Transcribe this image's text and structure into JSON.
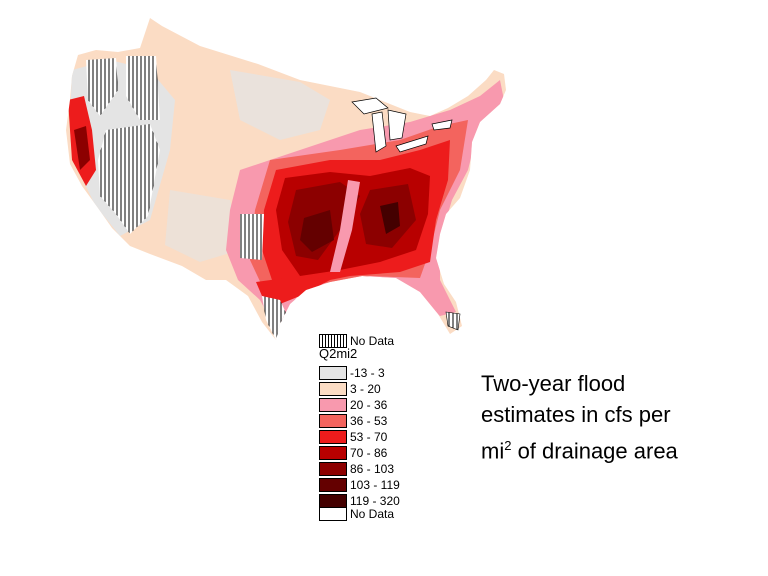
{
  "caption": {
    "line1": "Two-year flood",
    "line2": "estimates in cfs per",
    "line3_pre": "mi",
    "line3_sup": "2",
    "line3_post": " of drainage area"
  },
  "legend": {
    "top_nodata_label": "No Data",
    "title": "Q2mi2",
    "classes": [
      {
        "label": "-13 - 3",
        "color": "#e4e4e4"
      },
      {
        "label": "3 - 20",
        "color": "#fbdcc4"
      },
      {
        "label": "20 - 36",
        "color": "#f899ae"
      },
      {
        "label": "36 - 53",
        "color": "#f3645e"
      },
      {
        "label": "53 - 70",
        "color": "#ed1c1c"
      },
      {
        "label": "70 - 86",
        "color": "#b80000"
      },
      {
        "label": "86 - 103",
        "color": "#8c0000"
      },
      {
        "label": "103 - 119",
        "color": "#640000"
      },
      {
        "label": "119 - 320",
        "color": "#440000"
      }
    ],
    "bottom_nodata_label": "No Data"
  },
  "colors": {
    "nodata_hatch": "#000000",
    "background": "#ffffff"
  }
}
